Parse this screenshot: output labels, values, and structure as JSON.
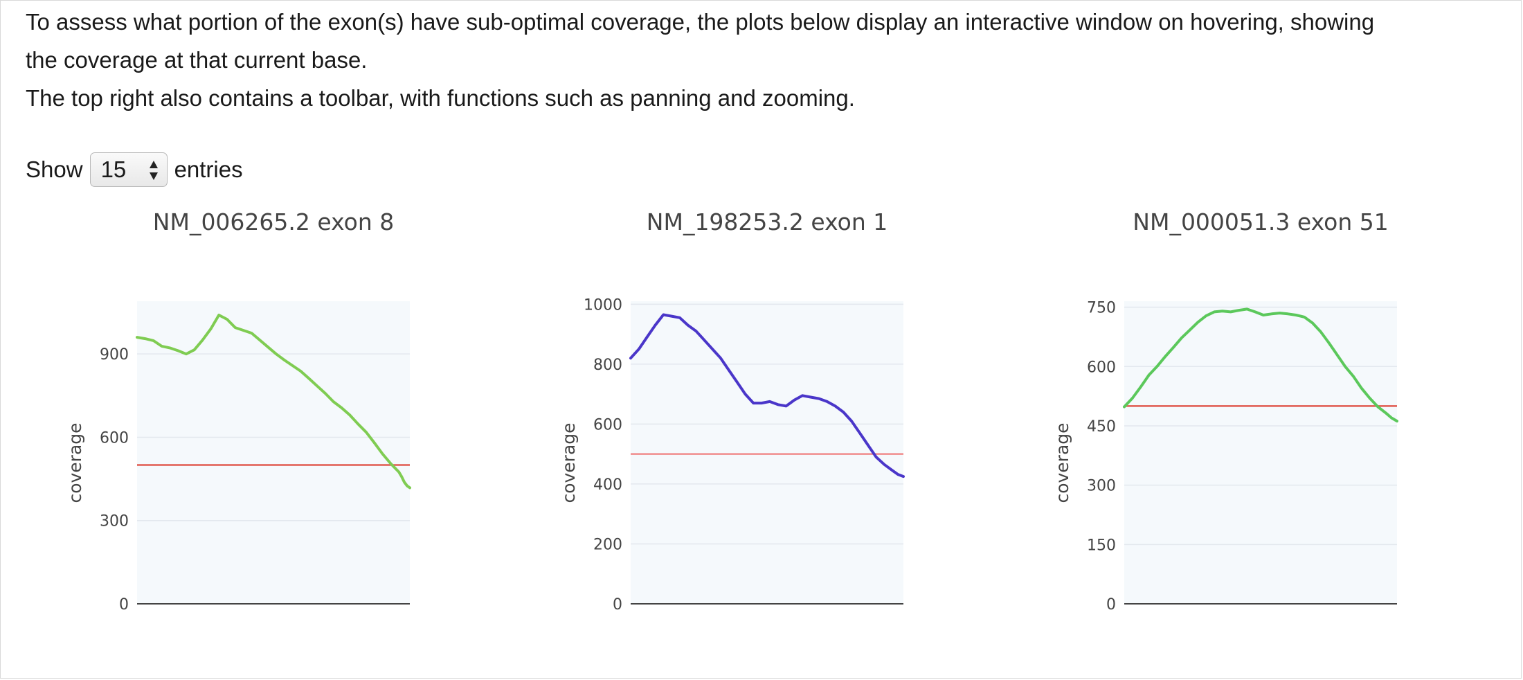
{
  "intro": {
    "line1": "To assess what portion of the exon(s) have sub-optimal coverage, the plots below display an interactive window on hovering, showing",
    "line2": "the coverage at that current base.",
    "line3": "The top right also contains a toolbar, with functions such as panning and zooming."
  },
  "length_control": {
    "show_label": "Show",
    "selected": "15",
    "entries_label": "entries"
  },
  "chart_data": [
    {
      "type": "line",
      "title": "NM_006265.2 exon 8",
      "ylabel": "coverage",
      "xlabel": "",
      "ylim": [
        0,
        1090
      ],
      "yticks": [
        0,
        300,
        600,
        900
      ],
      "threshold": 500,
      "color": "#7fcc52",
      "threshold_color": "#e05a4f",
      "grid": true,
      "x": [
        0,
        3,
        6,
        9,
        12,
        15,
        18,
        21,
        24,
        27,
        30,
        33,
        36,
        39,
        42,
        45,
        48,
        51,
        54,
        57,
        60,
        63,
        66,
        69,
        72,
        75,
        78,
        81,
        84,
        87,
        90,
        93,
        96,
        97,
        98,
        99,
        100
      ],
      "values": [
        960,
        955,
        948,
        928,
        922,
        912,
        900,
        915,
        950,
        990,
        1040,
        1025,
        995,
        985,
        975,
        950,
        925,
        900,
        878,
        858,
        838,
        812,
        785,
        758,
        728,
        706,
        680,
        648,
        618,
        580,
        540,
        505,
        475,
        458,
        438,
        425,
        418
      ]
    },
    {
      "type": "line",
      "title": "NM_198253.2 exon 1",
      "ylabel": "coverage",
      "xlabel": "",
      "ylim": [
        0,
        1010
      ],
      "yticks": [
        0,
        200,
        400,
        600,
        800,
        1000
      ],
      "threshold": 500,
      "color": "#4a36c9",
      "threshold_color": "#f08c8c",
      "grid": true,
      "x": [
        0,
        3,
        6,
        9,
        12,
        15,
        18,
        21,
        24,
        27,
        30,
        33,
        36,
        39,
        42,
        45,
        48,
        51,
        54,
        57,
        60,
        63,
        66,
        69,
        72,
        75,
        78,
        81,
        84,
        87,
        90,
        93,
        96,
        98,
        100
      ],
      "values": [
        820,
        850,
        890,
        930,
        965,
        960,
        955,
        930,
        910,
        880,
        850,
        820,
        780,
        740,
        700,
        670,
        670,
        675,
        665,
        660,
        680,
        695,
        690,
        685,
        675,
        660,
        640,
        610,
        570,
        530,
        490,
        465,
        445,
        432,
        425
      ]
    },
    {
      "type": "line",
      "title": "NM_000051.3 exon 51",
      "ylabel": "coverage",
      "xlabel": "",
      "ylim": [
        0,
        765
      ],
      "yticks": [
        0,
        150,
        300,
        450,
        600,
        750
      ],
      "threshold": 500,
      "color": "#5bc85b",
      "threshold_color": "#e05a4f",
      "grid": true,
      "x": [
        0,
        3,
        6,
        9,
        12,
        15,
        18,
        21,
        24,
        27,
        30,
        33,
        36,
        39,
        42,
        45,
        48,
        51,
        54,
        57,
        60,
        63,
        66,
        69,
        72,
        75,
        78,
        81,
        84,
        87,
        90,
        93,
        96,
        98,
        100
      ],
      "values": [
        498,
        520,
        548,
        578,
        600,
        625,
        648,
        672,
        692,
        712,
        728,
        738,
        740,
        738,
        742,
        745,
        738,
        730,
        733,
        735,
        733,
        730,
        725,
        710,
        688,
        660,
        630,
        600,
        575,
        545,
        520,
        498,
        482,
        470,
        462
      ]
    }
  ]
}
